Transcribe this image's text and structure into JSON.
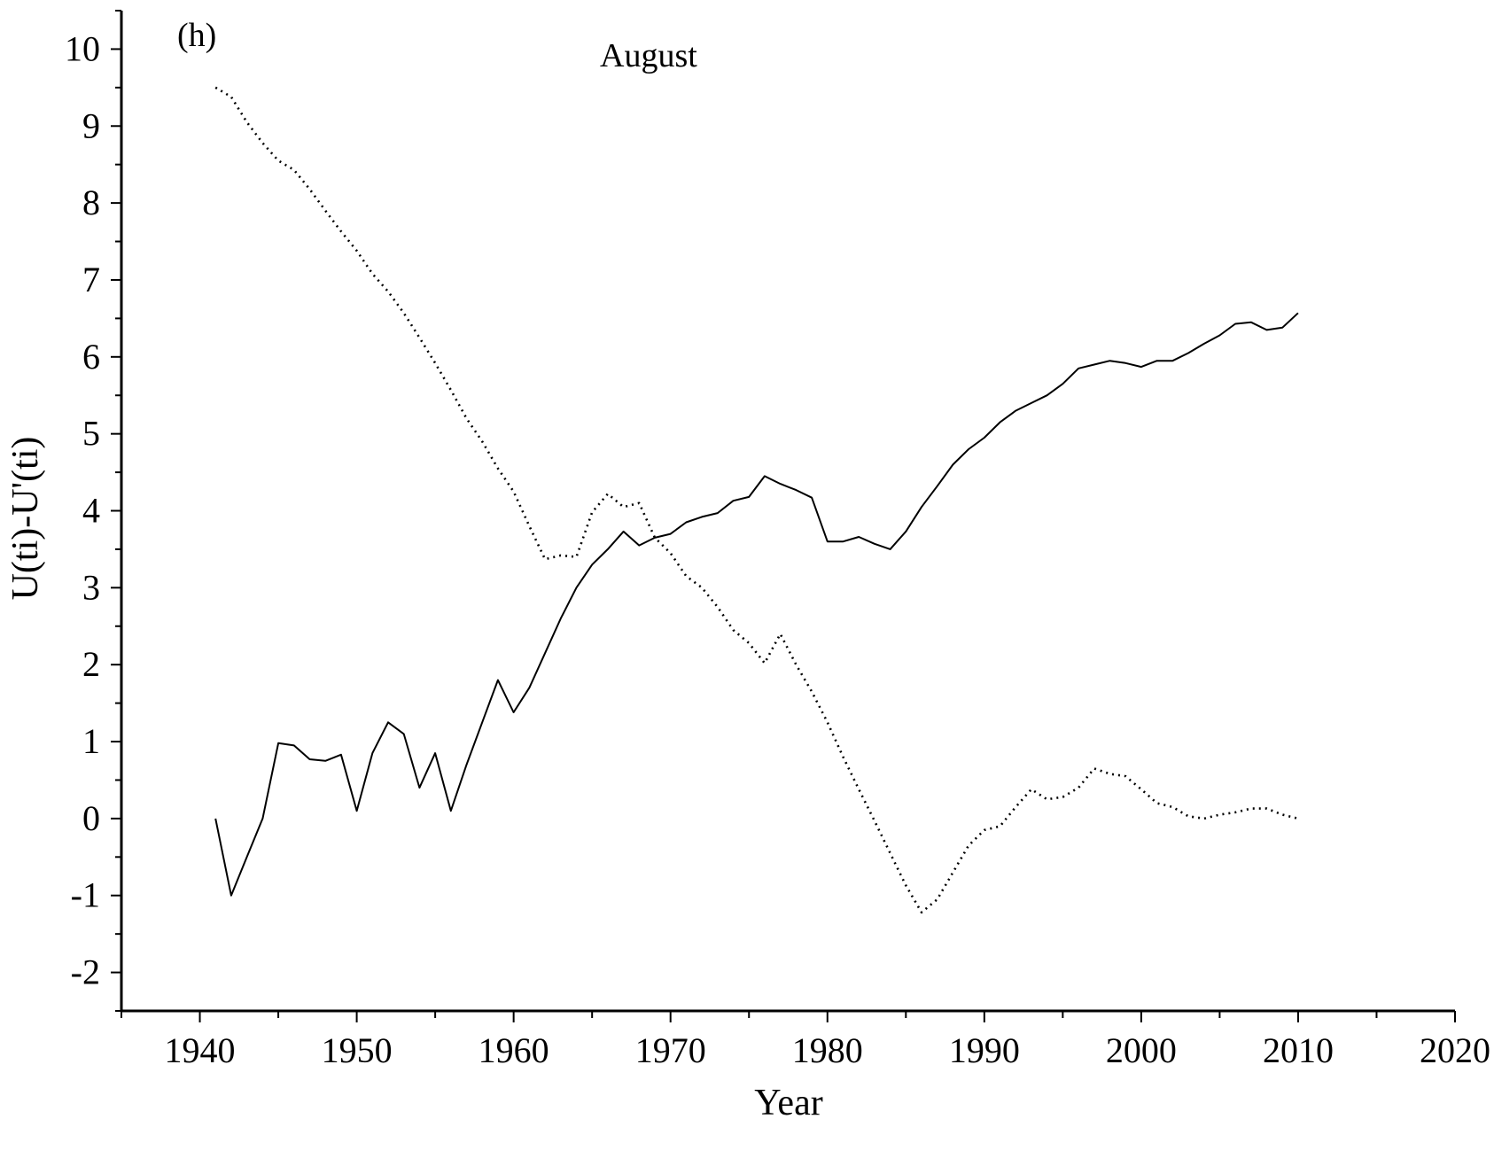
{
  "chart_data": {
    "type": "line",
    "panel_label": "(h)",
    "annotation": "August",
    "xlabel": "Year",
    "ylabel": "U(ti)-U'(ti)",
    "xlim": [
      1935,
      2020
    ],
    "ylim": [
      -2.5,
      10.5
    ],
    "xticks": [
      1940,
      1950,
      1960,
      1970,
      1980,
      1990,
      2000,
      2010,
      2020
    ],
    "yticks": [
      -2,
      -1,
      0,
      1,
      2,
      3,
      4,
      5,
      6,
      7,
      8,
      9,
      10
    ],
    "grid": false,
    "legend": "none",
    "x": [
      1941,
      1942,
      1943,
      1944,
      1945,
      1946,
      1947,
      1948,
      1949,
      1950,
      1951,
      1952,
      1953,
      1954,
      1955,
      1956,
      1957,
      1958,
      1959,
      1960,
      1961,
      1962,
      1963,
      1964,
      1965,
      1966,
      1967,
      1968,
      1969,
      1970,
      1971,
      1972,
      1973,
      1974,
      1975,
      1976,
      1977,
      1978,
      1979,
      1980,
      1981,
      1982,
      1983,
      1984,
      1985,
      1986,
      1987,
      1988,
      1989,
      1990,
      1991,
      1992,
      1993,
      1994,
      1995,
      1996,
      1997,
      1998,
      1999,
      2000,
      2001,
      2002,
      2003,
      2004,
      2005,
      2006,
      2007,
      2008,
      2009,
      2010
    ],
    "series": [
      {
        "style": "solid",
        "values": [
          0.0,
          -1.0,
          -0.5,
          0.0,
          0.98,
          0.95,
          0.77,
          0.75,
          0.83,
          0.1,
          0.85,
          1.25,
          1.1,
          0.4,
          0.85,
          0.1,
          0.7,
          1.25,
          1.8,
          1.38,
          1.7,
          2.15,
          2.6,
          3.0,
          3.3,
          3.5,
          3.73,
          3.55,
          3.65,
          3.7,
          3.85,
          3.92,
          3.97,
          4.13,
          4.18,
          4.45,
          4.35,
          4.27,
          4.17,
          3.6,
          3.6,
          3.66,
          3.57,
          3.5,
          3.73,
          4.05,
          4.32,
          4.6,
          4.8,
          4.95,
          5.15,
          5.3,
          5.4,
          5.5,
          5.65,
          5.85,
          5.9,
          5.95,
          5.92,
          5.87,
          5.95,
          5.95,
          6.05,
          6.17,
          6.28,
          6.43,
          6.45,
          6.35,
          6.38,
          6.57
        ]
      },
      {
        "style": "dotted",
        "values": [
          9.5,
          9.38,
          9.05,
          8.78,
          8.55,
          8.43,
          8.18,
          7.9,
          7.63,
          7.38,
          7.08,
          6.85,
          6.57,
          6.25,
          5.92,
          5.57,
          5.2,
          4.9,
          4.55,
          4.25,
          3.8,
          3.37,
          3.42,
          3.4,
          3.98,
          4.22,
          4.05,
          4.1,
          3.65,
          3.45,
          3.15,
          3.0,
          2.75,
          2.45,
          2.28,
          2.02,
          2.4,
          2.0,
          1.65,
          1.25,
          0.8,
          0.38,
          -0.03,
          -0.45,
          -0.87,
          -1.22,
          -1.05,
          -0.7,
          -0.35,
          -0.15,
          -0.1,
          0.15,
          0.38,
          0.25,
          0.28,
          0.4,
          0.65,
          0.58,
          0.55,
          0.38,
          0.2,
          0.15,
          0.03,
          0.0,
          0.05,
          0.08,
          0.13,
          0.13,
          0.05,
          0.0
        ]
      }
    ]
  }
}
